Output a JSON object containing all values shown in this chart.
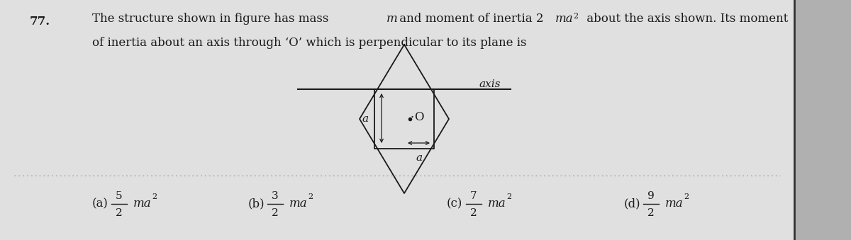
{
  "background_color": "#c8c8c8",
  "page_bg": "#e0e0e0",
  "question_number": "77.",
  "text_color": "#1a1a1a",
  "line_color": "#1a1a1a",
  "fig_width": 12.0,
  "fig_height": 3.39,
  "dpi": 100,
  "options": [
    {
      "label": "(a)",
      "num": "5",
      "denom": "2"
    },
    {
      "label": "(b)",
      "num": "3",
      "denom": "2"
    },
    {
      "label": "(c)",
      "num": "7",
      "denom": "2"
    },
    {
      "label": "(d)",
      "num": "9",
      "denom": "2"
    }
  ]
}
